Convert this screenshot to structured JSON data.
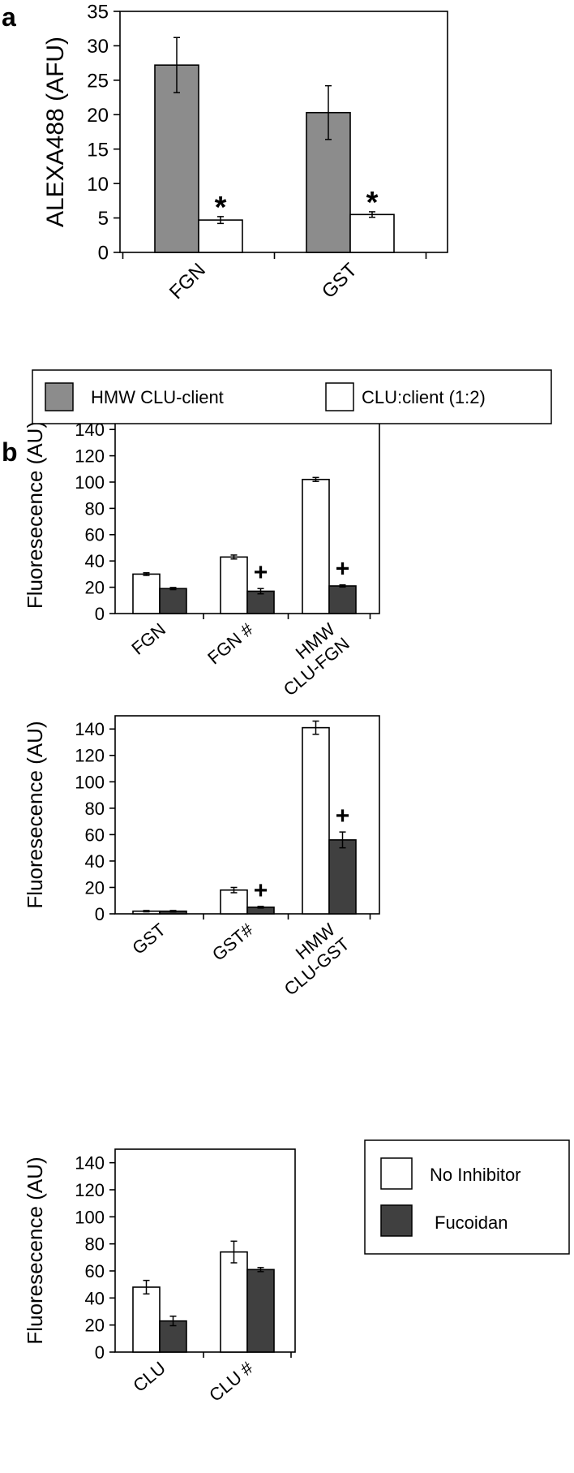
{
  "panels": {
    "a": {
      "label": "a"
    },
    "b": {
      "label": "b"
    }
  },
  "colors": {
    "hmw": "#8c8c8c",
    "clu_client": "#ffffff",
    "no_inhibitor": "#ffffff",
    "fucoidan": "#404040"
  },
  "legends": {
    "a": [
      "HMW CLU-client",
      "CLU:client (1:2)"
    ],
    "b": [
      "No Inhibitor",
      "Fucoidan"
    ]
  },
  "chart_data": [
    {
      "type": "bar",
      "panel": "a",
      "title": "",
      "xlabel": "",
      "ylabel": "ALEXA488 (AFU)",
      "ylim": [
        0,
        35
      ],
      "yticks": [
        0,
        5,
        10,
        15,
        20,
        25,
        30,
        35
      ],
      "categories": [
        "FGN",
        "GST"
      ],
      "series": [
        {
          "name": "HMW CLU-client",
          "values": [
            27.2,
            20.3
          ],
          "errors": [
            4.0,
            3.9
          ]
        },
        {
          "name": "CLU:client (1:2)",
          "values": [
            4.7,
            5.5
          ],
          "errors": [
            0.5,
            0.4
          ]
        }
      ],
      "annotations": [
        {
          "text": "*",
          "category": 0,
          "series": 1
        },
        {
          "text": "*",
          "category": 1,
          "series": 1
        }
      ]
    },
    {
      "type": "bar",
      "panel": "b",
      "title": "",
      "ylabel": "Fluoresecence (AU)",
      "ylim": [
        0,
        150
      ],
      "yticks": [
        0,
        20,
        40,
        60,
        80,
        100,
        120,
        140
      ],
      "categories": [
        [
          "FGN"
        ],
        [
          "FGN #"
        ],
        [
          "HMW",
          "CLU-FGN"
        ]
      ],
      "series": [
        {
          "name": "No Inhibitor",
          "values": [
            30,
            43,
            102
          ],
          "errors": [
            1.0,
            1.5,
            1.5
          ]
        },
        {
          "name": "Fucoidan",
          "values": [
            19,
            17,
            21
          ],
          "errors": [
            0.8,
            2.0,
            0.8
          ]
        }
      ],
      "annotations": [
        {
          "text": "+",
          "category": 1,
          "series": 1
        },
        {
          "text": "+",
          "category": 2,
          "series": 1
        }
      ]
    },
    {
      "type": "bar",
      "panel": "b",
      "title": "",
      "ylabel": "Fluoresecence (AU)",
      "ylim": [
        0,
        150
      ],
      "yticks": [
        0,
        20,
        40,
        60,
        80,
        100,
        120,
        140
      ],
      "categories": [
        [
          "GST"
        ],
        [
          "GST#"
        ],
        [
          "HMW",
          "CLU-GST"
        ]
      ],
      "series": [
        {
          "name": "No Inhibitor",
          "values": [
            2,
            18,
            141
          ],
          "errors": [
            0.5,
            2.0,
            5.0
          ]
        },
        {
          "name": "Fucoidan",
          "values": [
            2,
            5,
            56
          ],
          "errors": [
            0.5,
            0.6,
            6.0
          ]
        }
      ],
      "annotations": [
        {
          "text": "+",
          "category": 1,
          "series": 1
        },
        {
          "text": "+",
          "category": 2,
          "series": 1
        }
      ]
    },
    {
      "type": "bar",
      "panel": "b",
      "title": "",
      "ylabel": "Fluoresecence (AU)",
      "ylim": [
        0,
        150
      ],
      "yticks": [
        0,
        20,
        40,
        60,
        80,
        100,
        120,
        140
      ],
      "categories": [
        [
          "CLU"
        ],
        [
          "CLU #"
        ]
      ],
      "series": [
        {
          "name": "No Inhibitor",
          "values": [
            48,
            74
          ],
          "errors": [
            5.0,
            8.0
          ]
        },
        {
          "name": "Fucoidan",
          "values": [
            23,
            61
          ],
          "errors": [
            3.5,
            1.5
          ]
        }
      ],
      "annotations": []
    }
  ]
}
